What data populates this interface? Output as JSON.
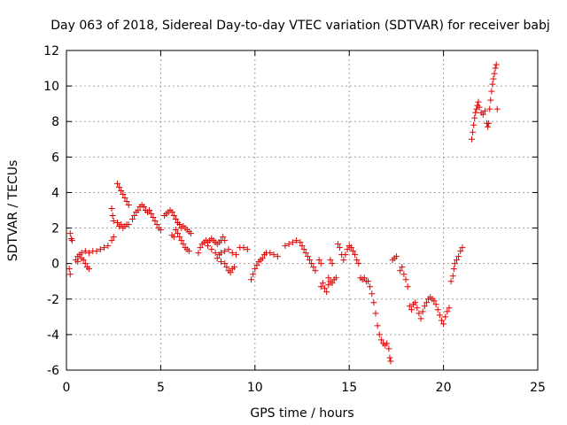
{
  "chart_data": {
    "type": "scatter",
    "title": "Day 063 of 2018, Sidereal Day-to-day VTEC variation (SDTVAR) for receiver babj",
    "xlabel": "GPS time / hours",
    "ylabel": "SDTVAR / TECUs",
    "xlim": [
      0,
      25
    ],
    "ylim": [
      -6,
      12
    ],
    "xticks": [
      "0",
      "5",
      "10",
      "15",
      "20",
      "25"
    ],
    "yticks": [
      "-6",
      "-4",
      "-2",
      "0",
      "2",
      "4",
      "6",
      "8",
      "10",
      "12"
    ],
    "grid": true,
    "marker": "plus",
    "color": "#e00000",
    "series": [
      {
        "name": "SDTVAR",
        "points": [
          [
            0.2,
            1.7
          ],
          [
            0.25,
            1.4
          ],
          [
            0.3,
            1.3
          ],
          [
            0.15,
            -0.3
          ],
          [
            0.2,
            -0.6
          ],
          [
            0.5,
            0.2
          ],
          [
            0.6,
            0.4
          ],
          [
            0.7,
            0.5
          ],
          [
            0.8,
            0.3
          ],
          [
            0.9,
            0.2
          ],
          [
            1.0,
            0.0
          ],
          [
            1.1,
            -0.2
          ],
          [
            1.2,
            -0.3
          ],
          [
            0.6,
            0.1
          ],
          [
            0.8,
            0.6
          ],
          [
            1.0,
            0.7
          ],
          [
            1.2,
            0.6
          ],
          [
            1.4,
            0.7
          ],
          [
            1.6,
            0.7
          ],
          [
            1.8,
            0.8
          ],
          [
            2.0,
            0.9
          ],
          [
            2.2,
            1.0
          ],
          [
            2.4,
            1.3
          ],
          [
            2.5,
            1.5
          ],
          [
            2.4,
            3.1
          ],
          [
            2.45,
            2.7
          ],
          [
            2.5,
            2.4
          ],
          [
            2.7,
            2.3
          ],
          [
            2.8,
            2.1
          ],
          [
            2.9,
            2.2
          ],
          [
            3.0,
            2.0
          ],
          [
            3.1,
            2.1
          ],
          [
            3.2,
            2.2
          ],
          [
            3.3,
            2.2
          ],
          [
            2.7,
            4.5
          ],
          [
            2.8,
            4.3
          ],
          [
            2.9,
            4.1
          ],
          [
            3.0,
            3.9
          ],
          [
            3.1,
            3.7
          ],
          [
            3.2,
            3.5
          ],
          [
            3.3,
            3.3
          ],
          [
            3.5,
            2.5
          ],
          [
            3.6,
            2.7
          ],
          [
            3.7,
            2.9
          ],
          [
            3.8,
            3.0
          ],
          [
            3.9,
            3.2
          ],
          [
            4.0,
            3.3
          ],
          [
            4.1,
            3.2
          ],
          [
            4.2,
            3.0
          ],
          [
            4.3,
            2.9
          ],
          [
            4.4,
            3.0
          ],
          [
            4.5,
            2.8
          ],
          [
            4.6,
            2.6
          ],
          [
            4.7,
            2.4
          ],
          [
            4.8,
            2.2
          ],
          [
            4.9,
            2.0
          ],
          [
            5.0,
            1.9
          ],
          [
            5.2,
            2.7
          ],
          [
            5.3,
            2.8
          ],
          [
            5.4,
            2.9
          ],
          [
            5.5,
            3.0
          ],
          [
            5.6,
            2.9
          ],
          [
            5.7,
            2.7
          ],
          [
            5.8,
            2.5
          ],
          [
            5.9,
            2.3
          ],
          [
            6.0,
            2.2
          ],
          [
            5.6,
            1.6
          ],
          [
            5.7,
            1.5
          ],
          [
            5.8,
            1.9
          ],
          [
            5.9,
            1.7
          ],
          [
            6.0,
            1.5
          ],
          [
            6.1,
            1.3
          ],
          [
            6.2,
            1.1
          ],
          [
            6.3,
            0.9
          ],
          [
            6.4,
            0.8
          ],
          [
            6.5,
            0.7
          ],
          [
            6.1,
            2.0
          ],
          [
            6.2,
            2.1
          ],
          [
            6.3,
            2.0
          ],
          [
            6.4,
            1.9
          ],
          [
            6.5,
            1.8
          ],
          [
            6.6,
            1.7
          ],
          [
            7.0,
            0.6
          ],
          [
            7.1,
            0.9
          ],
          [
            7.2,
            1.1
          ],
          [
            7.3,
            1.2
          ],
          [
            7.4,
            1.3
          ],
          [
            7.5,
            1.2
          ],
          [
            7.6,
            1.3
          ],
          [
            7.7,
            1.4
          ],
          [
            7.8,
            1.3
          ],
          [
            7.9,
            1.2
          ],
          [
            8.0,
            1.1
          ],
          [
            8.1,
            1.2
          ],
          [
            8.2,
            1.3
          ],
          [
            7.5,
            1.0
          ],
          [
            7.7,
            0.8
          ],
          [
            7.9,
            0.6
          ],
          [
            8.1,
            0.5
          ],
          [
            8.3,
            1.5
          ],
          [
            8.4,
            1.3
          ],
          [
            8.0,
            0.3
          ],
          [
            8.2,
            0.1
          ],
          [
            8.4,
            0.0
          ],
          [
            8.5,
            -0.2
          ],
          [
            8.6,
            -0.4
          ],
          [
            8.7,
            -0.5
          ],
          [
            8.8,
            -0.3
          ],
          [
            8.9,
            -0.2
          ],
          [
            8.2,
            0.6
          ],
          [
            8.4,
            0.7
          ],
          [
            8.6,
            0.8
          ],
          [
            8.8,
            0.6
          ],
          [
            9.0,
            0.5
          ],
          [
            9.2,
            0.9
          ],
          [
            9.4,
            0.9
          ],
          [
            9.6,
            0.8
          ],
          [
            9.8,
            -0.9
          ],
          [
            9.9,
            -0.6
          ],
          [
            10.0,
            -0.3
          ],
          [
            10.1,
            -0.1
          ],
          [
            10.2,
            0.1
          ],
          [
            10.3,
            0.2
          ],
          [
            10.4,
            0.3
          ],
          [
            10.5,
            0.5
          ],
          [
            10.6,
            0.6
          ],
          [
            10.8,
            0.6
          ],
          [
            11.0,
            0.5
          ],
          [
            11.2,
            0.4
          ],
          [
            11.6,
            1.0
          ],
          [
            11.8,
            1.1
          ],
          [
            12.0,
            1.2
          ],
          [
            12.2,
            1.3
          ],
          [
            12.4,
            1.2
          ],
          [
            12.5,
            1.0
          ],
          [
            12.6,
            0.8
          ],
          [
            12.7,
            0.6
          ],
          [
            12.8,
            0.4
          ],
          [
            12.9,
            0.2
          ],
          [
            13.0,
            0.0
          ],
          [
            13.1,
            -0.2
          ],
          [
            13.2,
            -0.4
          ],
          [
            13.4,
            0.2
          ],
          [
            13.5,
            0.0
          ],
          [
            13.5,
            -1.3
          ],
          [
            13.6,
            -1.1
          ],
          [
            13.7,
            -1.4
          ],
          [
            13.8,
            -1.6
          ],
          [
            13.9,
            -1.2
          ],
          [
            14.0,
            -1.0
          ],
          [
            14.1,
            -1.1
          ],
          [
            14.2,
            -0.9
          ],
          [
            14.3,
            -0.8
          ],
          [
            13.9,
            -0.8
          ],
          [
            14.0,
            0.2
          ],
          [
            14.1,
            0.0
          ],
          [
            14.4,
            1.1
          ],
          [
            14.5,
            0.9
          ],
          [
            14.6,
            0.5
          ],
          [
            14.7,
            0.2
          ],
          [
            14.8,
            0.5
          ],
          [
            14.9,
            0.8
          ],
          [
            15.0,
            1.0
          ],
          [
            15.1,
            0.9
          ],
          [
            15.2,
            0.7
          ],
          [
            15.3,
            0.5
          ],
          [
            15.4,
            0.2
          ],
          [
            15.5,
            0.0
          ],
          [
            15.6,
            -0.8
          ],
          [
            15.7,
            -0.9
          ],
          [
            15.8,
            -0.8
          ],
          [
            15.9,
            -1.0
          ],
          [
            16.0,
            -1.0
          ],
          [
            16.1,
            -1.3
          ],
          [
            16.2,
            -1.7
          ],
          [
            16.3,
            -2.2
          ],
          [
            16.4,
            -2.8
          ],
          [
            16.5,
            -3.5
          ],
          [
            16.6,
            -4.0
          ],
          [
            16.7,
            -4.3
          ],
          [
            16.8,
            -4.5
          ],
          [
            16.9,
            -4.6
          ],
          [
            17.0,
            -4.5
          ],
          [
            17.1,
            -4.8
          ],
          [
            17.15,
            -5.3
          ],
          [
            17.2,
            -5.5
          ],
          [
            17.3,
            0.2
          ],
          [
            17.4,
            0.3
          ],
          [
            17.5,
            0.4
          ],
          [
            17.7,
            -0.4
          ],
          [
            17.8,
            -0.2
          ],
          [
            17.9,
            -0.6
          ],
          [
            18.0,
            -0.9
          ],
          [
            18.1,
            -1.3
          ],
          [
            18.2,
            -2.4
          ],
          [
            18.3,
            -2.6
          ],
          [
            18.4,
            -2.3
          ],
          [
            18.5,
            -2.2
          ],
          [
            18.6,
            -2.5
          ],
          [
            18.7,
            -2.8
          ],
          [
            18.8,
            -3.1
          ],
          [
            18.9,
            -2.7
          ],
          [
            19.0,
            -2.4
          ],
          [
            19.1,
            -2.2
          ],
          [
            19.2,
            -2.0
          ],
          [
            19.3,
            -1.9
          ],
          [
            19.4,
            -2.0
          ],
          [
            19.5,
            -2.1
          ],
          [
            19.6,
            -2.3
          ],
          [
            19.7,
            -2.6
          ],
          [
            19.8,
            -2.9
          ],
          [
            19.9,
            -3.2
          ],
          [
            20.0,
            -3.4
          ],
          [
            20.1,
            -3.0
          ],
          [
            20.2,
            -2.7
          ],
          [
            20.3,
            -2.5
          ],
          [
            20.4,
            -1.0
          ],
          [
            20.5,
            -0.7
          ],
          [
            20.55,
            -0.3
          ],
          [
            20.6,
            0.0
          ],
          [
            20.7,
            0.2
          ],
          [
            20.8,
            0.4
          ],
          [
            20.9,
            0.7
          ],
          [
            21.0,
            0.9
          ],
          [
            21.5,
            7.0
          ],
          [
            21.55,
            7.4
          ],
          [
            21.6,
            7.8
          ],
          [
            21.65,
            8.2
          ],
          [
            21.7,
            8.5
          ],
          [
            21.75,
            8.7
          ],
          [
            21.8,
            8.9
          ],
          [
            21.85,
            9.1
          ],
          [
            21.9,
            8.8
          ],
          [
            22.0,
            8.5
          ],
          [
            22.1,
            8.4
          ],
          [
            22.2,
            8.6
          ],
          [
            22.3,
            7.9
          ],
          [
            22.35,
            7.7
          ],
          [
            22.4,
            7.9
          ],
          [
            22.45,
            8.7
          ],
          [
            22.5,
            9.2
          ],
          [
            22.55,
            9.7
          ],
          [
            22.6,
            10.1
          ],
          [
            22.65,
            10.4
          ],
          [
            22.7,
            10.7
          ],
          [
            22.75,
            11.0
          ],
          [
            22.8,
            11.2
          ],
          [
            22.85,
            8.7
          ]
        ]
      }
    ]
  }
}
